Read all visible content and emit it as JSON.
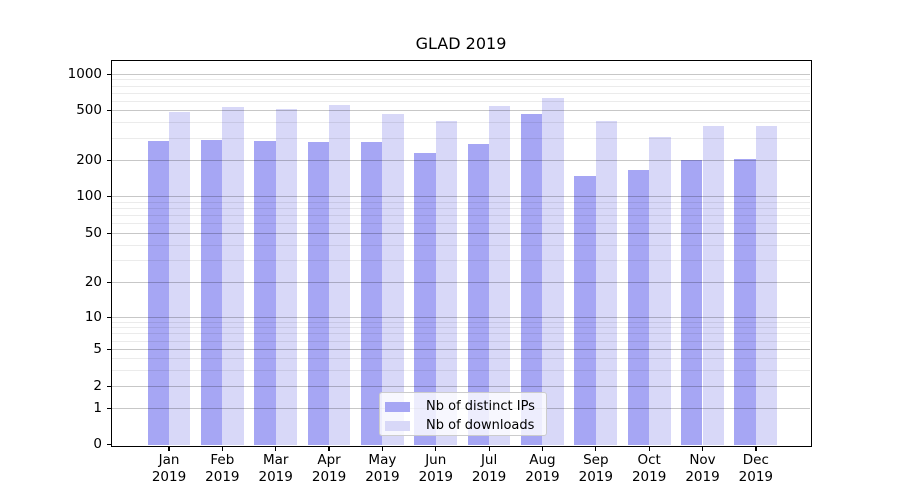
{
  "chart_data": {
    "type": "bar",
    "title": "GLAD 2019",
    "categories": [
      "Jan",
      "Feb",
      "Mar",
      "Apr",
      "May",
      "Jun",
      "Jul",
      "Aug",
      "Sep",
      "Oct",
      "Nov",
      "Dec"
    ],
    "x_tick_year": "2019",
    "series": [
      {
        "name": "Nb of distinct IPs",
        "color": "#a6a6f4",
        "values": [
          285,
          291,
          285,
          280,
          277,
          226,
          268,
          462,
          147,
          166,
          201,
          204
        ]
      },
      {
        "name": "Nb of downloads",
        "color": "#d8d8f8",
        "values": [
          486,
          525,
          507,
          555,
          463,
          410,
          545,
          633,
          405,
          306,
          373,
          374
        ]
      }
    ],
    "xlabel": "",
    "ylabel": "",
    "yscale": "symlog",
    "y_ticks": [
      0,
      1,
      2,
      5,
      10,
      20,
      50,
      100,
      200,
      500,
      1000
    ],
    "y_minor_gridlines": [
      3,
      4,
      6,
      7,
      8,
      9,
      30,
      40,
      60,
      70,
      80,
      90,
      300,
      400,
      600,
      700,
      800,
      900
    ],
    "ylim": [
      0,
      1280
    ],
    "grid": "both",
    "legend": {
      "position": "lower center"
    }
  }
}
